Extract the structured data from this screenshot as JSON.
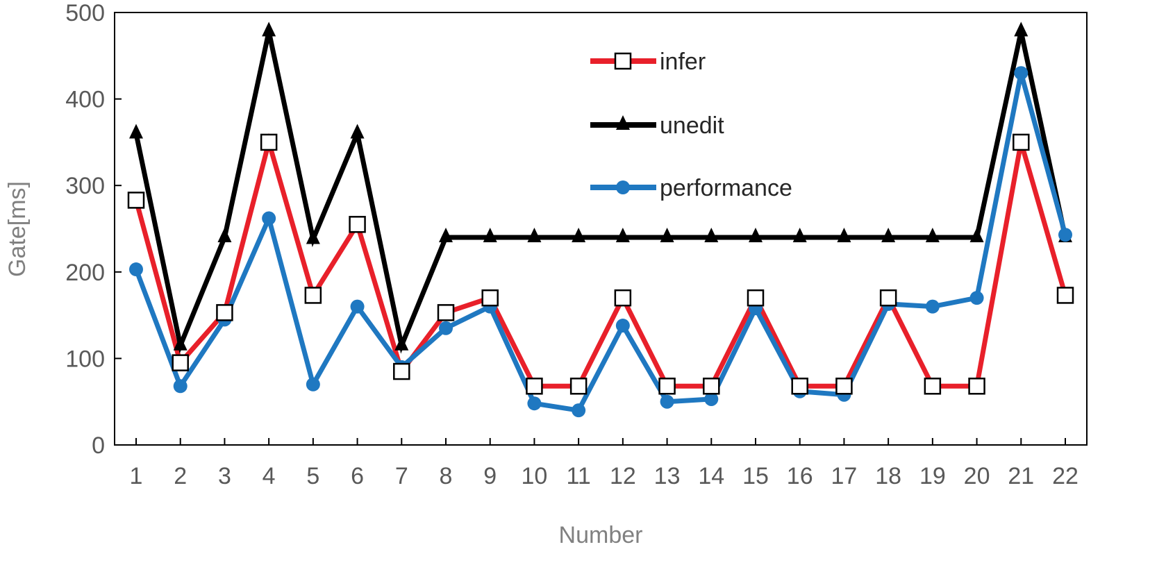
{
  "chart_data": {
    "type": "line",
    "title": "",
    "xlabel": "Number",
    "ylabel": "Gate[ms]",
    "categories": [
      "1",
      "2",
      "3",
      "4",
      "5",
      "6",
      "7",
      "8",
      "9",
      "10",
      "11",
      "12",
      "13",
      "14",
      "15",
      "16",
      "17",
      "18",
      "19",
      "20",
      "21",
      "22"
    ],
    "ylim": [
      0,
      500
    ],
    "yticks": [
      0,
      100,
      200,
      300,
      400,
      500
    ],
    "grid": false,
    "legend_position": "top-center",
    "series": [
      {
        "name": "infer",
        "color": "#e8202a",
        "marker": "open-square",
        "values": [
          283,
          95,
          153,
          350,
          173,
          255,
          85,
          153,
          170,
          68,
          68,
          170,
          68,
          68,
          170,
          68,
          68,
          170,
          68,
          68,
          350,
          173
        ]
      },
      {
        "name": "unedit",
        "color": "#000000",
        "marker": "triangle",
        "values": [
          360,
          115,
          240,
          478,
          238,
          360,
          115,
          240,
          240,
          240,
          240,
          240,
          240,
          240,
          240,
          240,
          240,
          240,
          240,
          240,
          478,
          240
        ]
      },
      {
        "name": "performance",
        "color": "#1f78c1",
        "marker": "circle",
        "values": [
          203,
          68,
          145,
          262,
          70,
          160,
          90,
          135,
          160,
          48,
          40,
          138,
          50,
          53,
          158,
          62,
          58,
          163,
          160,
          170,
          430,
          243
        ]
      }
    ]
  }
}
